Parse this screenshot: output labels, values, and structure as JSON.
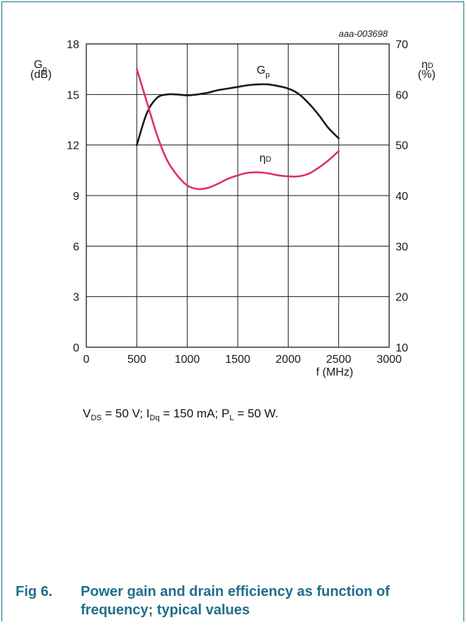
{
  "figure_id": "aaa-003698",
  "chart_data": {
    "type": "line",
    "x": [
      500,
      600,
      700,
      800,
      900,
      1000,
      1100,
      1200,
      1300,
      1400,
      1500,
      1600,
      1700,
      1800,
      1900,
      2000,
      2100,
      2200,
      2300,
      2400,
      2500
    ],
    "xlim": [
      0,
      3000
    ],
    "xticks": [
      "0",
      "500",
      "1000",
      "1500",
      "2000",
      "2500",
      "3000"
    ],
    "xlabel": "f (MHz)",
    "y_left": {
      "label_main": "G",
      "label_sub": "p",
      "unit": "(dB)",
      "lim": [
        0,
        18
      ],
      "ticks": [
        "0",
        "3",
        "6",
        "9",
        "12",
        "15",
        "18"
      ]
    },
    "y_right": {
      "label_main": "η",
      "label_sub": "D",
      "unit": "(%)",
      "lim": [
        10,
        70
      ],
      "ticks": [
        "10",
        "20",
        "30",
        "40",
        "50",
        "60",
        "70"
      ]
    },
    "series": [
      {
        "name": "Gp",
        "label_main": "G",
        "label_sub": "p",
        "axis": "left",
        "color": "#1a1a1a",
        "values": [
          12.0,
          13.9,
          14.8,
          15.0,
          15.0,
          14.95,
          15.0,
          15.1,
          15.25,
          15.35,
          15.45,
          15.55,
          15.6,
          15.6,
          15.5,
          15.35,
          15.05,
          14.5,
          13.8,
          13.0,
          12.4
        ]
      },
      {
        "name": "ηD",
        "label_main": "η",
        "label_sub": "D",
        "axis": "right",
        "color": "#e0315a",
        "values": [
          65.0,
          58.5,
          52.0,
          47.0,
          44.0,
          42.0,
          41.3,
          41.5,
          42.3,
          43.3,
          44.0,
          44.5,
          44.6,
          44.4,
          44.0,
          43.8,
          43.8,
          44.3,
          45.5,
          47.0,
          48.8
        ]
      }
    ]
  },
  "conditions": {
    "v_main": "V",
    "v_sub": "DS",
    "v_val": " = 50 V; ",
    "i_main": "I",
    "i_sub": "Dq",
    "i_val": " = 150 mA; ",
    "p_main": "P",
    "p_sub": "L",
    "p_val": " = 50 W."
  },
  "caption": {
    "number": "Fig 6.",
    "text": "Power gain and drain efficiency as function of frequency; typical values"
  }
}
